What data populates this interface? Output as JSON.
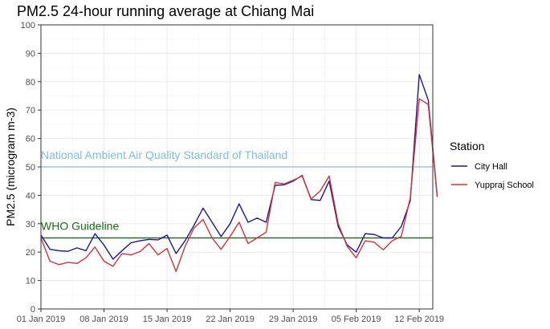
{
  "chart_data": {
    "type": "line",
    "title": "PM2.5 24-hour running average at Chiang Mai",
    "ylabel": "PM2.5 (microgram m-3)",
    "xlabel": "",
    "ylim": [
      0,
      100
    ],
    "yticks": [
      0,
      10,
      20,
      30,
      40,
      50,
      60,
      70,
      80,
      90,
      100
    ],
    "xlim": [
      0,
      43.5
    ],
    "xticks": [
      {
        "day": 0,
        "label": "01 Jan 2019"
      },
      {
        "day": 7,
        "label": "08 Jan 2019"
      },
      {
        "day": 14,
        "label": "15 Jan 2019"
      },
      {
        "day": 21,
        "label": "22 Jan 2019"
      },
      {
        "day": 28,
        "label": "29 Jan 2019"
      },
      {
        "day": 35,
        "label": "05 Feb 2019"
      },
      {
        "day": 42,
        "label": "12 Feb 2019"
      }
    ],
    "x": [
      0,
      1,
      2,
      3,
      4,
      5,
      6,
      7,
      8,
      9,
      10,
      11,
      12,
      13,
      14,
      15,
      16,
      17,
      18,
      19,
      20,
      21,
      22,
      23,
      24,
      25,
      26,
      27,
      28,
      29,
      30,
      31,
      32,
      33,
      34,
      35,
      36,
      37,
      38,
      39,
      40,
      41,
      42,
      43,
      44
    ],
    "series": [
      {
        "name": "City Hall",
        "color": "#1a1a8c",
        "values": [
          26,
          21,
          20.5,
          20.3,
          21.5,
          20.5,
          26.5,
          22.5,
          17.5,
          20.5,
          23.3,
          24,
          24.5,
          24.3,
          26,
          19.5,
          24,
          29.5,
          35.5,
          30.5,
          25.5,
          30,
          37,
          30.5,
          32,
          30.5,
          43.5,
          43.7,
          45,
          47,
          38.5,
          38.2,
          45,
          29,
          22.5,
          20,
          26.5,
          26.2,
          25,
          25,
          29,
          38,
          82.5,
          73.5,
          39.5
        ]
      },
      {
        "name": "Yuppraj School",
        "color": "#d7303a",
        "values": [
          25,
          16.8,
          15.6,
          16.4,
          16,
          18,
          21.8,
          16.8,
          15,
          19.5,
          19,
          20.2,
          23,
          19,
          21.3,
          13.2,
          22,
          28.5,
          31.5,
          25,
          21,
          25.5,
          30.5,
          23,
          25,
          27,
          44.5,
          44,
          45.3,
          46.8,
          38.7,
          41.5,
          46.8,
          30,
          22,
          18,
          24,
          23.5,
          20.8,
          24,
          25.5,
          39,
          74,
          72,
          39.5
        ]
      }
    ],
    "hlines": [
      {
        "y": 50,
        "label": "National Ambient Air Quality Standard of Thailand",
        "color": "#9ecae1"
      },
      {
        "y": 25,
        "label": "WHO Guideline",
        "color": "#2d6a2d"
      }
    ],
    "legend": {
      "title": "Station",
      "position": "right",
      "entries": [
        "City Hall",
        "Yuppraj School"
      ]
    },
    "grid": true
  }
}
